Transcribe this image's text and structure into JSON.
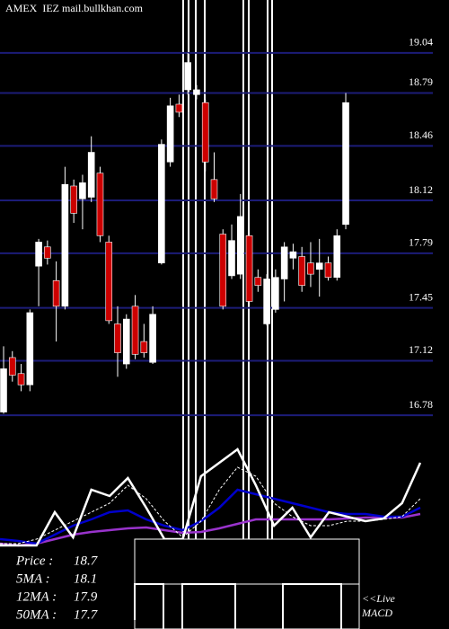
{
  "chart_data": [
    {
      "type": "candlestick",
      "title": "AMEX  IEZ mail.bullkhan.com",
      "up_color": "#ffffff",
      "down_color": "#cc0000",
      "grid_color": "#1c1c78",
      "ylim": [
        16.68,
        19.37
      ],
      "yticks": [
        16.78,
        17.12,
        17.45,
        17.79,
        18.12,
        18.46,
        18.79,
        19.04
      ],
      "grid": true,
      "candles": [
        {
          "open": 16.8,
          "high": 17.21,
          "low": 16.79,
          "close": 17.07
        },
        {
          "open": 17.14,
          "high": 17.18,
          "low": 16.99,
          "close": 17.03
        },
        {
          "open": 17.04,
          "high": 17.1,
          "low": 16.93,
          "close": 16.97
        },
        {
          "open": 16.97,
          "high": 17.44,
          "low": 16.93,
          "close": 17.42
        },
        {
          "open": 17.71,
          "high": 17.88,
          "low": 17.46,
          "close": 17.86
        },
        {
          "open": 17.83,
          "high": 17.87,
          "low": 17.72,
          "close": 17.76
        },
        {
          "open": 17.62,
          "high": 17.74,
          "low": 17.24,
          "close": 17.46
        },
        {
          "open": 17.46,
          "high": 18.33,
          "low": 17.44,
          "close": 18.22
        },
        {
          "open": 18.21,
          "high": 18.25,
          "low": 17.98,
          "close": 18.04
        },
        {
          "open": 18.13,
          "high": 18.28,
          "low": 17.94,
          "close": 18.23
        },
        {
          "open": 18.14,
          "high": 18.52,
          "low": 18.11,
          "close": 18.42
        },
        {
          "open": 18.29,
          "high": 18.33,
          "low": 17.86,
          "close": 17.9
        },
        {
          "open": 17.86,
          "high": 17.9,
          "low": 17.35,
          "close": 17.37
        },
        {
          "open": 17.35,
          "high": 17.46,
          "low": 17.02,
          "close": 17.17
        },
        {
          "open": 17.1,
          "high": 17.41,
          "low": 17.07,
          "close": 17.38
        },
        {
          "open": 17.46,
          "high": 17.53,
          "low": 17.13,
          "close": 17.16
        },
        {
          "open": 17.24,
          "high": 17.35,
          "low": 17.14,
          "close": 17.17
        },
        {
          "open": 17.11,
          "high": 17.46,
          "low": 17.1,
          "close": 17.41
        },
        {
          "open": 17.73,
          "high": 18.5,
          "low": 17.72,
          "close": 18.47
        },
        {
          "open": 18.36,
          "high": 18.76,
          "low": 18.33,
          "close": 18.71
        },
        {
          "open": 18.72,
          "high": 18.78,
          "low": 18.64,
          "close": 18.67
        },
        {
          "open": 18.81,
          "high": 19.04,
          "low": 18.78,
          "close": 18.98
        },
        {
          "open": 18.78,
          "high": 18.84,
          "low": 18.75,
          "close": 18.81
        },
        {
          "open": 18.73,
          "high": 18.75,
          "low": 18.3,
          "close": 18.36
        },
        {
          "open": 18.25,
          "high": 18.42,
          "low": 18.11,
          "close": 18.13
        },
        {
          "open": 17.91,
          "high": 17.94,
          "low": 17.44,
          "close": 17.46
        },
        {
          "open": 17.65,
          "high": 17.97,
          "low": 17.63,
          "close": 17.87
        },
        {
          "open": 17.66,
          "high": 18.16,
          "low": 17.63,
          "close": 18.02
        },
        {
          "open": 17.9,
          "high": 17.92,
          "low": 17.46,
          "close": 17.49
        },
        {
          "open": 17.64,
          "high": 17.69,
          "low": 17.55,
          "close": 17.59
        },
        {
          "open": 17.35,
          "high": 17.66,
          "low": 17.34,
          "close": 17.63
        },
        {
          "open": 17.44,
          "high": 17.69,
          "low": 17.42,
          "close": 17.64
        },
        {
          "open": 17.63,
          "high": 17.86,
          "low": 17.49,
          "close": 17.83
        },
        {
          "open": 17.76,
          "high": 17.85,
          "low": 17.69,
          "close": 17.8
        },
        {
          "open": 17.77,
          "high": 17.83,
          "low": 17.55,
          "close": 17.59
        },
        {
          "open": 17.73,
          "high": 17.86,
          "low": 17.58,
          "close": 17.66
        },
        {
          "open": 17.69,
          "high": 17.88,
          "low": 17.52,
          "close": 17.73
        },
        {
          "open": 17.73,
          "high": 17.77,
          "low": 17.62,
          "close": 17.64
        },
        {
          "open": 17.64,
          "high": 17.94,
          "low": 17.62,
          "close": 17.9
        },
        {
          "open": 17.97,
          "high": 18.79,
          "low": 17.94,
          "close": 18.73
        }
      ]
    },
    {
      "type": "line",
      "ylim": [
        0,
        100
      ],
      "series": [
        {
          "color": "#9933cc",
          "values": [
            4.2,
            2.5,
            4.2,
            8.3,
            12.5,
            15,
            16.7,
            18.3,
            19.2,
            16.7,
            14.2,
            15,
            18.3,
            22.5,
            26.7,
            26.7,
            26.7,
            26.7,
            26.7,
            27.5,
            28.3,
            28.3,
            28.3,
            31.7
          ]
        },
        {
          "color": "#0000cc",
          "values": [
            8.3,
            6.7,
            4.2,
            12.5,
            20.8,
            26.7,
            33.3,
            35,
            26.7,
            20.8,
            16.7,
            25,
            37.5,
            54.2,
            50,
            45.8,
            41.7,
            37.5,
            33.3,
            31.7,
            31.7,
            29.2,
            29.2,
            37.5
          ]
        },
        {
          "color": "#ffffff",
          "dashed": true,
          "values": [
            4.2,
            4.2,
            8.3,
            16.7,
            25,
            33.3,
            41.7,
            58.3,
            45.8,
            25,
            10,
            25,
            54.2,
            75,
            66.7,
            41.7,
            29.2,
            20.8,
            20.8,
            25,
            25,
            26.7,
            29.2,
            45.8
          ]
        },
        {
          "color": "#ffffff",
          "values": [
            2.5,
            2.5,
            2.5,
            33.3,
            10,
            54.2,
            48.3,
            65,
            37.5,
            8.3,
            8.3,
            66.7,
            79.2,
            91.7,
            58.3,
            20.8,
            37.5,
            10,
            33.3,
            29.2,
            25,
            27.5,
            41.7,
            79.2
          ]
        }
      ],
      "legend": [
        {
          "label": "Price :",
          "value": 18.7
        },
        {
          "label": "5MA :",
          "value": 18.1
        },
        {
          "label": "12MA :",
          "value": 17.9
        },
        {
          "label": "50MA :",
          "value": 17.7
        }
      ],
      "annotations": [
        "<<Live",
        "MACD"
      ]
    }
  ]
}
